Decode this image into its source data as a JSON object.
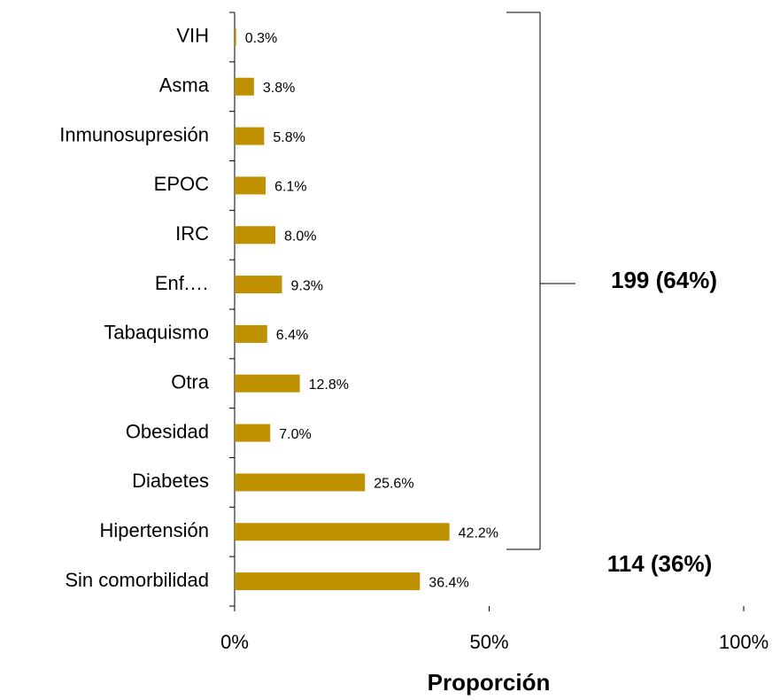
{
  "chart_data": {
    "type": "hbar",
    "xlabel": "Proporción",
    "categories": [
      "VIH",
      "Asma",
      "Inmunosupresión",
      "EPOC",
      "IRC",
      "Enf.…",
      "Tabaquismo",
      "Otra",
      "Obesidad",
      "Diabetes",
      "Hipertensión",
      "Sin comorbilidad"
    ],
    "values": [
      0.3,
      3.8,
      5.8,
      6.1,
      8.0,
      9.3,
      6.4,
      12.8,
      7.0,
      25.6,
      42.2,
      36.4
    ],
    "value_labels": [
      "0.3%",
      "3.8%",
      "5.8%",
      "6.1%",
      "8.0%",
      "9.3%",
      "6.4%",
      "12.8%",
      "7.0%",
      "25.6%",
      "42.2%",
      "36.4%"
    ],
    "color": "#bf9000",
    "xlim": [
      0,
      100
    ],
    "xticks": [
      {
        "value": 0,
        "label": "0%"
      },
      {
        "value": 50,
        "label": "50%"
      },
      {
        "value": 100,
        "label": "100%"
      }
    ],
    "annotations": [
      "199 (64%)",
      "114 (36%)"
    ]
  }
}
